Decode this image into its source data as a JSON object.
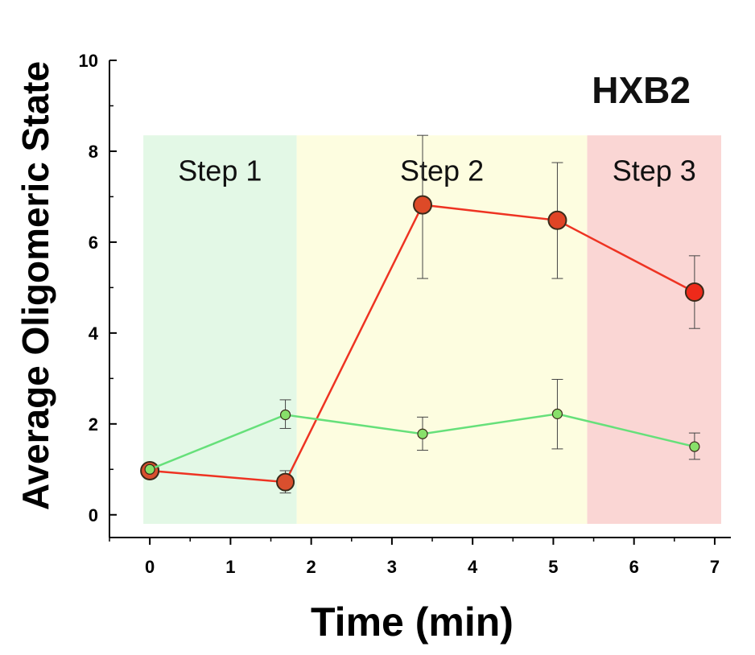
{
  "chart_data": {
    "type": "line",
    "title": "",
    "annotation": "HXB2",
    "xlabel": "Time (min)",
    "ylabel": "Average Oligomeric State",
    "xlim": [
      -0.5,
      7.2
    ],
    "ylim": [
      -0.5,
      10
    ],
    "xticks": [
      0,
      1,
      2,
      3,
      4,
      5,
      6,
      7
    ],
    "yticks": [
      0,
      2,
      4,
      6,
      8,
      10
    ],
    "grid": false,
    "regions": [
      {
        "label": "Step 1",
        "x0": -0.08,
        "x1": 1.82,
        "y0": -0.2,
        "y1": 8.35,
        "color": "#e3f8e6"
      },
      {
        "label": "Step 2",
        "x0": 1.82,
        "x1": 5.42,
        "y0": -0.2,
        "y1": 8.35,
        "color": "#fdfde0"
      },
      {
        "label": "Step 3",
        "x0": 5.42,
        "x1": 7.08,
        "y0": -0.2,
        "y1": 8.35,
        "color": "#fad6d4"
      }
    ],
    "series": [
      {
        "line_color": "#ee3322",
        "x": [
          0,
          1.68,
          3.38,
          5.05,
          6.75
        ],
        "y": [
          0.97,
          0.72,
          6.82,
          6.48,
          4.9
        ],
        "err_low": [
          0.97,
          0.48,
          5.2,
          5.2,
          4.1
        ],
        "err_high": [
          0.97,
          0.97,
          8.35,
          7.75,
          5.7
        ],
        "marker_colors": [
          "#d94f2e",
          "#d94f2e",
          "#dd4a28",
          "#e04426",
          "#ee2a1a"
        ]
      },
      {
        "line_color": "#66e07a",
        "x": [
          0,
          1.68,
          3.38,
          5.05,
          6.75
        ],
        "y": [
          1.0,
          2.2,
          1.78,
          2.22,
          1.5
        ],
        "err_low": [
          1.0,
          1.9,
          1.42,
          1.45,
          1.22
        ],
        "err_high": [
          1.0,
          2.53,
          2.15,
          2.98,
          1.8
        ],
        "marker_colors": [
          "#88e06a",
          "#88e06a",
          "#88e06a",
          "#88e06a",
          "#88e06a"
        ]
      }
    ]
  }
}
